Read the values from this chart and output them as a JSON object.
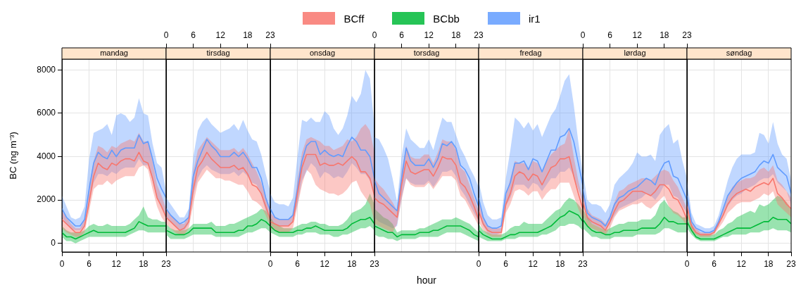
{
  "chart_data": [
    {
      "type": "line",
      "title": "mandag",
      "ylabel": "BC (ng m⁻³)",
      "legend": "top",
      "grid": true,
      "xlim": [
        0,
        23
      ],
      "xticks": [
        0,
        6,
        12,
        18,
        23
      ],
      "ylim": [
        -400,
        8500
      ],
      "yticks": [
        0,
        2000,
        4000,
        6000,
        8000
      ],
      "x": [
        0,
        1,
        2,
        3,
        4,
        5,
        6,
        7,
        8,
        9,
        10,
        11,
        12,
        13,
        14,
        15,
        16,
        17,
        18,
        19,
        20,
        21,
        22,
        23
      ],
      "series": [
        {
          "name": "BCff",
          "color": "#f8766d",
          "values": [
            1100,
            900,
            700,
            500,
            500,
            800,
            1900,
            3100,
            3700,
            3500,
            3400,
            3700,
            3600,
            3800,
            3900,
            3900,
            3800,
            4200,
            3800,
            3700,
            3000,
            2100,
            1700,
            1200
          ],
          "upper": [
            1500,
            1200,
            900,
            700,
            700,
            1100,
            2600,
            3800,
            4500,
            4400,
            4200,
            4500,
            4400,
            4600,
            4700,
            4800,
            4700,
            5100,
            4700,
            4700,
            3800,
            2700,
            2200,
            1600
          ],
          "lower": [
            700,
            500,
            400,
            300,
            300,
            500,
            1500,
            2500,
            2700,
            2700,
            2900,
            2700,
            2900,
            3000,
            3100,
            3100,
            3100,
            3500,
            3600,
            3400,
            2500,
            1700,
            1200,
            900
          ]
        },
        {
          "name": "BCbb",
          "color": "#00ba38",
          "values": [
            500,
            300,
            300,
            200,
            300,
            400,
            500,
            600,
            500,
            500,
            500,
            500,
            500,
            500,
            500,
            600,
            700,
            1000,
            900,
            800,
            800,
            800,
            800,
            800
          ],
          "upper": [
            800,
            600,
            500,
            500,
            500,
            600,
            800,
            900,
            800,
            800,
            900,
            800,
            800,
            800,
            800,
            900,
            1100,
            1300,
            1700,
            1200,
            1100,
            1100,
            1000,
            1000
          ],
          "lower": [
            300,
            100,
            100,
            0,
            100,
            200,
            300,
            300,
            300,
            300,
            300,
            300,
            300,
            300,
            300,
            400,
            500,
            600,
            600,
            500,
            500,
            500,
            500,
            500
          ]
        },
        {
          "name": "ir1",
          "color": "#619cff",
          "values": [
            1600,
            1200,
            1000,
            800,
            800,
            1100,
            2500,
            3700,
            4200,
            4000,
            3900,
            4300,
            4000,
            4300,
            4400,
            4400,
            4400,
            5000,
            4600,
            4700,
            3900,
            3000,
            2500,
            2100
          ],
          "upper": [
            2200,
            1700,
            1200,
            1100,
            1200,
            1700,
            3900,
            5100,
            5200,
            5300,
            5500,
            5000,
            5900,
            6000,
            5900,
            5600,
            5800,
            6700,
            6000,
            5900,
            4600,
            3700,
            3500,
            2400
          ],
          "lower": [
            1200,
            900,
            700,
            600,
            600,
            800,
            1800,
            2800,
            3200,
            3200,
            3100,
            3300,
            3200,
            3400,
            3500,
            3500,
            3500,
            3900,
            3600,
            3600,
            2900,
            2100,
            1600,
            1300
          ]
        }
      ]
    },
    {
      "type": "line",
      "title": "tirsdag",
      "grid": true,
      "tick_labels": "x",
      "xlim": [
        0,
        23
      ],
      "xticks": [
        0,
        6,
        12,
        18,
        23
      ],
      "ylim": [
        -400,
        8500
      ],
      "yticks": [
        0,
        2000,
        4000,
        6000,
        8000
      ],
      "x": [
        0,
        1,
        2,
        3,
        4,
        5,
        6,
        7,
        8,
        9,
        10,
        11,
        12,
        13,
        14,
        15,
        16,
        17,
        18,
        19,
        20,
        21,
        22,
        23
      ],
      "series": [
        {
          "color": "#f8766d",
          "values": [
            1200,
            1000,
            800,
            600,
            700,
            1000,
            2500,
            3500,
            3800,
            4200,
            3900,
            3700,
            3500,
            3500,
            3500,
            3600,
            3400,
            3500,
            3200,
            2700,
            2600,
            2300,
            1700,
            1100
          ],
          "upper": [
            1600,
            1300,
            1100,
            900,
            900,
            1300,
            3300,
            4300,
            4600,
            4900,
            4700,
            4500,
            4300,
            4300,
            4300,
            4400,
            4200,
            4400,
            4100,
            3700,
            3300,
            2800,
            2100,
            1500
          ],
          "lower": [
            900,
            700,
            500,
            400,
            400,
            700,
            1800,
            2800,
            3100,
            3400,
            3200,
            3000,
            3000,
            2900,
            2900,
            2800,
            2700,
            2700,
            2400,
            2000,
            1900,
            1700,
            1300,
            800
          ]
        },
        {
          "color": "#00ba38",
          "values": [
            600,
            500,
            400,
            400,
            400,
            500,
            700,
            700,
            700,
            700,
            700,
            500,
            500,
            500,
            500,
            500,
            600,
            600,
            800,
            800,
            900,
            1100,
            1000,
            800
          ],
          "upper": [
            900,
            700,
            600,
            600,
            600,
            700,
            900,
            900,
            900,
            900,
            1000,
            800,
            800,
            800,
            900,
            900,
            1000,
            1100,
            1200,
            1300,
            1400,
            1600,
            1500,
            1200
          ],
          "lower": [
            400,
            200,
            200,
            200,
            200,
            300,
            400,
            400,
            400,
            400,
            400,
            300,
            300,
            300,
            300,
            300,
            300,
            400,
            500,
            500,
            600,
            700,
            700,
            500
          ]
        },
        {
          "color": "#619cff",
          "values": [
            1600,
            1300,
            1100,
            900,
            1000,
            1200,
            3100,
            3800,
            4300,
            4800,
            4500,
            4300,
            4000,
            4000,
            4000,
            4200,
            4000,
            4200,
            3900,
            3500,
            3500,
            3000,
            2100,
            1500
          ],
          "upper": [
            2100,
            1800,
            1500,
            1200,
            1200,
            1600,
            4000,
            5200,
            5600,
            5800,
            5500,
            5300,
            5100,
            5200,
            5300,
            5500,
            5200,
            5700,
            5200,
            4800,
            4700,
            4100,
            3200,
            2400
          ],
          "lower": [
            1200,
            1000,
            800,
            600,
            600,
            900,
            2200,
            3000,
            3400,
            3600,
            3400,
            3300,
            3200,
            3200,
            3200,
            3300,
            3100,
            3300,
            3100,
            2800,
            2700,
            2200,
            1500,
            1100
          ]
        }
      ]
    },
    {
      "type": "line",
      "title": "onsdag",
      "grid": true,
      "tick_labels": "x",
      "xlim": [
        0,
        23
      ],
      "xticks": [
        0,
        6,
        12,
        18,
        23
      ],
      "ylim": [
        -400,
        8500
      ],
      "yticks": [
        0,
        2000,
        4000,
        6000,
        8000
      ],
      "x": [
        0,
        1,
        2,
        3,
        4,
        5,
        6,
        7,
        8,
        9,
        10,
        11,
        12,
        13,
        14,
        15,
        16,
        17,
        18,
        19,
        20,
        21,
        22,
        23
      ],
      "series": [
        {
          "color": "#f8766d",
          "values": [
            1000,
            900,
            800,
            800,
            800,
            1000,
            2300,
            3500,
            4100,
            4100,
            4100,
            3600,
            3700,
            3600,
            3600,
            3700,
            3600,
            3800,
            4000,
            3800,
            3300,
            3300,
            3000,
            2200
          ],
          "upper": [
            1400,
            1200,
            1100,
            1100,
            1100,
            1300,
            2900,
            4200,
            4800,
            4900,
            4800,
            4700,
            4500,
            4500,
            4300,
            4400,
            4500,
            4800,
            4700,
            4900,
            5300,
            5500,
            5200,
            4200
          ],
          "lower": [
            700,
            600,
            500,
            500,
            500,
            700,
            1700,
            2700,
            3400,
            3200,
            2700,
            2500,
            2400,
            2300,
            2300,
            2200,
            2300,
            2500,
            2800,
            2900,
            2400,
            2100,
            1800,
            1000
          ]
        },
        {
          "color": "#00ba38",
          "values": [
            800,
            600,
            500,
            500,
            500,
            500,
            600,
            600,
            700,
            700,
            800,
            700,
            600,
            600,
            600,
            600,
            600,
            700,
            900,
            1000,
            1100,
            1100,
            1200,
            900
          ],
          "upper": [
            1200,
            900,
            800,
            700,
            700,
            700,
            800,
            900,
            900,
            1000,
            1000,
            900,
            900,
            800,
            800,
            800,
            900,
            1100,
            1400,
            1500,
            1600,
            1800,
            2300,
            1800
          ],
          "lower": [
            500,
            400,
            300,
            300,
            300,
            300,
            400,
            400,
            500,
            500,
            500,
            400,
            400,
            400,
            300,
            300,
            400,
            400,
            500,
            600,
            700,
            700,
            800,
            600
          ]
        },
        {
          "color": "#619cff",
          "values": [
            1600,
            1200,
            1100,
            1100,
            1100,
            1300,
            2500,
            3800,
            4500,
            4700,
            4700,
            4100,
            4300,
            4100,
            4000,
            4100,
            4000,
            4500,
            4900,
            4700,
            4300,
            4300,
            4000,
            3000
          ],
          "upper": [
            2300,
            1900,
            1800,
            1800,
            1700,
            2100,
            4000,
            5700,
            5600,
            5800,
            5600,
            5600,
            6100,
            5900,
            5300,
            5000,
            5300,
            5900,
            6800,
            6500,
            6900,
            8000,
            7600,
            5400
          ],
          "lower": [
            1100,
            900,
            800,
            800,
            800,
            1000,
            1800,
            2900,
            3300,
            3700,
            3500,
            3000,
            3300,
            3200,
            3000,
            3100,
            3000,
            3300,
            3700,
            3500,
            3200,
            3200,
            2900,
            2200
          ]
        }
      ]
    },
    {
      "type": "line",
      "title": "torsdag",
      "xlabel": "hour",
      "grid": true,
      "tick_labels": "x",
      "xlim": [
        0,
        23
      ],
      "xticks": [
        0,
        6,
        12,
        18,
        23
      ],
      "ylim": [
        -400,
        8500
      ],
      "yticks": [
        0,
        2000,
        4000,
        6000,
        8000
      ],
      "x": [
        0,
        1,
        2,
        3,
        4,
        5,
        6,
        7,
        8,
        9,
        10,
        11,
        12,
        13,
        14,
        15,
        16,
        17,
        18,
        19,
        20,
        21,
        22,
        23
      ],
      "series": [
        {
          "color": "#f8766d",
          "values": [
            2100,
            1900,
            1800,
            1600,
            1400,
            1200,
            2700,
            3800,
            3300,
            3200,
            3300,
            3400,
            3400,
            3100,
            3500,
            4000,
            3900,
            3900,
            3600,
            2800,
            2600,
            2200,
            1700,
            1100
          ],
          "upper": [
            3000,
            2700,
            2500,
            2200,
            1900,
            1500,
            3300,
            4500,
            4000,
            3900,
            3900,
            4100,
            4100,
            3700,
            4200,
            4800,
            4700,
            4700,
            4300,
            3500,
            3300,
            2700,
            2100,
            1500
          ],
          "lower": [
            900,
            800,
            700,
            600,
            500,
            900,
            2000,
            3000,
            2700,
            2600,
            2600,
            2600,
            2800,
            2500,
            2800,
            3100,
            3100,
            3100,
            2900,
            2200,
            2000,
            1600,
            1200,
            800
          ]
        },
        {
          "color": "#00ba38",
          "values": [
            800,
            700,
            600,
            500,
            500,
            300,
            400,
            400,
            400,
            400,
            500,
            500,
            500,
            600,
            600,
            700,
            800,
            800,
            800,
            800,
            700,
            600,
            400,
            300
          ],
          "upper": [
            1600,
            1400,
            1200,
            1100,
            900,
            500,
            600,
            600,
            600,
            600,
            700,
            700,
            800,
            900,
            1000,
            1100,
            1100,
            1100,
            1200,
            1100,
            1000,
            900,
            700,
            500
          ],
          "lower": [
            400,
            300,
            300,
            200,
            200,
            100,
            200,
            200,
            200,
            200,
            300,
            300,
            300,
            300,
            300,
            400,
            500,
            500,
            500,
            500,
            400,
            300,
            200,
            100
          ]
        },
        {
          "color": "#619cff",
          "values": [
            2900,
            2300,
            2100,
            1900,
            1700,
            1500,
            3000,
            4400,
            3800,
            3600,
            3600,
            3600,
            3900,
            3500,
            3900,
            4600,
            4500,
            4700,
            4400,
            3600,
            3400,
            3000,
            2300,
            1700
          ],
          "upper": [
            4900,
            4800,
            4400,
            3900,
            3000,
            1900,
            4000,
            5300,
            4800,
            4600,
            4400,
            4400,
            4800,
            4300,
            5100,
            5800,
            5600,
            5600,
            5000,
            4400,
            4000,
            3500,
            3100,
            2600
          ],
          "lower": [
            1200,
            1000,
            900,
            800,
            700,
            800,
            2100,
            3000,
            2800,
            2700,
            2700,
            2700,
            2900,
            2600,
            2900,
            3300,
            3300,
            3400,
            3100,
            2500,
            2200,
            1800,
            1400,
            1000
          ]
        }
      ]
    },
    {
      "type": "line",
      "title": "fredag",
      "grid": true,
      "tick_labels": "x",
      "xlim": [
        0,
        23
      ],
      "xticks": [
        0,
        6,
        12,
        18,
        23
      ],
      "ylim": [
        -400,
        8500
      ],
      "yticks": [
        0,
        2000,
        4000,
        6000,
        8000
      ],
      "x": [
        0,
        1,
        2,
        3,
        4,
        5,
        6,
        7,
        8,
        9,
        10,
        11,
        12,
        13,
        14,
        15,
        16,
        17,
        18,
        19,
        20,
        21,
        22,
        23
      ],
      "series": [
        {
          "color": "#f8766d",
          "values": [
            1500,
            900,
            600,
            500,
            500,
            500,
            1800,
            2300,
            3100,
            3300,
            3200,
            2900,
            3200,
            3100,
            2700,
            3100,
            3500,
            3600,
            3900,
            3900,
            4000,
            3100,
            2300,
            1600
          ],
          "upper": [
            2000,
            1200,
            800,
            700,
            700,
            700,
            2200,
            3000,
            3800,
            3700,
            3700,
            3500,
            3800,
            3700,
            3300,
            3800,
            4100,
            4300,
            4500,
            4600,
            5300,
            4000,
            2900,
            2000
          ],
          "lower": [
            1000,
            600,
            400,
            300,
            300,
            300,
            1400,
            1800,
            2400,
            2500,
            2400,
            2200,
            2400,
            2400,
            2000,
            2300,
            2500,
            2500,
            2800,
            2800,
            2800,
            2200,
            1600,
            1100
          ]
        },
        {
          "color": "#00ba38",
          "values": [
            600,
            400,
            300,
            200,
            200,
            200,
            300,
            400,
            400,
            500,
            500,
            500,
            500,
            500,
            600,
            700,
            800,
            1000,
            1200,
            1300,
            1500,
            1400,
            1300,
            1000
          ],
          "upper": [
            900,
            600,
            500,
            400,
            400,
            400,
            500,
            700,
            800,
            800,
            1000,
            900,
            900,
            900,
            900,
            1100,
            1300,
            1500,
            1600,
            1900,
            2100,
            2000,
            1800,
            1500
          ],
          "lower": [
            300,
            200,
            100,
            100,
            100,
            100,
            200,
            200,
            200,
            300,
            300,
            300,
            300,
            300,
            400,
            400,
            500,
            600,
            800,
            800,
            900,
            900,
            800,
            600
          ]
        },
        {
          "color": "#619cff",
          "values": [
            2100,
            1200,
            800,
            700,
            700,
            800,
            2300,
            2800,
            3700,
            3700,
            3800,
            3400,
            3900,
            3800,
            3300,
            3800,
            4300,
            4300,
            4900,
            5000,
            5300,
            4700,
            3700,
            2700
          ],
          "upper": [
            2900,
            1900,
            1300,
            1100,
            1100,
            1200,
            3000,
            4300,
            5800,
            5600,
            5300,
            5600,
            5200,
            5500,
            4900,
            5400,
            5900,
            6200,
            6800,
            7500,
            7800,
            6400,
            4700,
            3200
          ],
          "lower": [
            1400,
            800,
            500,
            400,
            400,
            500,
            1700,
            2100,
            2700,
            2700,
            2700,
            2500,
            2800,
            2700,
            2400,
            2700,
            3000,
            3000,
            3300,
            3300,
            3500,
            3100,
            2500,
            1900
          ]
        }
      ]
    },
    {
      "type": "line",
      "title": "lørdag",
      "grid": true,
      "tick_labels": "x",
      "xlim": [
        0,
        23
      ],
      "xticks": [
        0,
        6,
        12,
        18,
        23
      ],
      "ylim": [
        -400,
        8500
      ],
      "yticks": [
        0,
        2000,
        4000,
        6000,
        8000
      ],
      "x": [
        0,
        1,
        2,
        3,
        4,
        5,
        6,
        7,
        8,
        9,
        10,
        11,
        12,
        13,
        14,
        15,
        16,
        17,
        18,
        19,
        20,
        21,
        22,
        23
      ],
      "series": [
        {
          "color": "#f8766d",
          "values": [
            1900,
            1200,
            1000,
            900,
            800,
            600,
            1000,
            1500,
            1900,
            2000,
            2200,
            2400,
            2400,
            2400,
            2300,
            2200,
            2400,
            2700,
            2700,
            2500,
            2100,
            2000,
            1600,
            1100
          ],
          "upper": [
            2500,
            1600,
            1300,
            1200,
            1100,
            900,
            1300,
            1900,
            2400,
            2500,
            2700,
            2800,
            2900,
            3000,
            3000,
            2900,
            3100,
            3300,
            3400,
            3300,
            2900,
            2600,
            2100,
            1600
          ],
          "lower": [
            1300,
            800,
            700,
            600,
            500,
            400,
            700,
            1200,
            1500,
            1600,
            1700,
            1800,
            1800,
            1900,
            1700,
            1600,
            1800,
            2000,
            2200,
            1700,
            1400,
            1300,
            1100,
            800
          ]
        },
        {
          "color": "#00ba38",
          "values": [
            1100,
            800,
            600,
            500,
            500,
            400,
            400,
            500,
            500,
            600,
            600,
            600,
            600,
            700,
            700,
            700,
            700,
            900,
            1200,
            1000,
            1000,
            900,
            900,
            900
          ],
          "upper": [
            1600,
            1200,
            900,
            800,
            700,
            600,
            700,
            800,
            900,
            900,
            1000,
            1000,
            1000,
            1100,
            1100,
            1100,
            1300,
            1800,
            2000,
            1700,
            1500,
            1400,
            1200,
            1200
          ],
          "lower": [
            700,
            500,
            300,
            300,
            200,
            200,
            200,
            300,
            300,
            300,
            300,
            300,
            400,
            400,
            400,
            400,
            400,
            500,
            700,
            700,
            600,
            500,
            500,
            500
          ]
        },
        {
          "color": "#619cff",
          "values": [
            2500,
            1400,
            1200,
            1100,
            1000,
            800,
            1200,
            1800,
            2100,
            2200,
            2400,
            2500,
            2600,
            2800,
            3000,
            2900,
            2700,
            3300,
            3700,
            3800,
            3100,
            3000,
            2500,
            2000
          ],
          "upper": [
            3300,
            2000,
            1800,
            1800,
            1700,
            1400,
            1800,
            2700,
            3000,
            3200,
            3400,
            3700,
            4200,
            4000,
            4000,
            4100,
            3800,
            5000,
            5300,
            5500,
            4600,
            4800,
            3800,
            3000
          ],
          "lower": [
            1900,
            1100,
            900,
            800,
            700,
            600,
            900,
            1300,
            1600,
            1700,
            1800,
            1900,
            2000,
            2100,
            2300,
            2200,
            2000,
            2300,
            2700,
            2700,
            2200,
            2100,
            1700,
            1400
          ]
        }
      ]
    },
    {
      "type": "line",
      "title": "søndag",
      "grid": true,
      "tick_labels": "x",
      "xlim": [
        0,
        23
      ],
      "xticks": [
        0,
        6,
        12,
        18,
        23
      ],
      "ylim": [
        -400,
        8500
      ],
      "yticks": [
        0,
        2000,
        4000,
        6000,
        8000
      ],
      "x": [
        0,
        1,
        2,
        3,
        4,
        5,
        6,
        7,
        8,
        9,
        10,
        11,
        12,
        13,
        14,
        15,
        16,
        17,
        18,
        19,
        20,
        21,
        22,
        23
      ],
      "series": [
        {
          "color": "#f8766d",
          "values": [
            1700,
            800,
            500,
            400,
            400,
            400,
            500,
            900,
            1300,
            1800,
            2100,
            2300,
            2400,
            2500,
            2400,
            2600,
            2700,
            2800,
            2700,
            3000,
            2300,
            2100,
            1800,
            1600
          ],
          "upper": [
            2100,
            1000,
            700,
            500,
            500,
            500,
            600,
            1100,
            1600,
            2200,
            2600,
            2800,
            2900,
            3000,
            3000,
            3100,
            3400,
            3500,
            3300,
            3600,
            2900,
            2700,
            2400,
            2100
          ],
          "lower": [
            1300,
            600,
            400,
            300,
            300,
            300,
            400,
            700,
            1000,
            1400,
            1600,
            1800,
            1900,
            1900,
            1900,
            2000,
            2100,
            2300,
            2200,
            2400,
            1800,
            1600,
            1400,
            1200
          ]
        },
        {
          "color": "#00ba38",
          "values": [
            1000,
            600,
            300,
            200,
            200,
            200,
            200,
            300,
            400,
            500,
            600,
            700,
            700,
            700,
            700,
            800,
            900,
            1000,
            1000,
            1200,
            1100,
            1100,
            1100,
            900
          ],
          "upper": [
            1400,
            900,
            500,
            400,
            400,
            400,
            400,
            600,
            700,
            900,
            1000,
            1200,
            1300,
            1400,
            1500,
            1400,
            1800,
            1700,
            1800,
            2000,
            2200,
            2100,
            1900,
            1600
          ],
          "lower": [
            700,
            400,
            200,
            100,
            100,
            100,
            100,
            200,
            300,
            300,
            400,
            400,
            400,
            400,
            500,
            500,
            500,
            600,
            600,
            700,
            600,
            600,
            600,
            500
          ]
        },
        {
          "color": "#619cff",
          "values": [
            2200,
            1000,
            700,
            600,
            500,
            500,
            600,
            1000,
            1600,
            2200,
            2500,
            2800,
            3000,
            3100,
            3200,
            3300,
            3600,
            3800,
            3700,
            4100,
            3500,
            3300,
            3100,
            2300
          ],
          "upper": [
            2900,
            1400,
            900,
            800,
            700,
            700,
            800,
            1300,
            2100,
            2900,
            3500,
            3900,
            4100,
            4100,
            4100,
            4200,
            5100,
            5000,
            4600,
            5600,
            4600,
            4100,
            3900,
            2900
          ],
          "lower": [
            1700,
            700,
            500,
            400,
            400,
            400,
            500,
            800,
            1300,
            1700,
            2000,
            2200,
            2300,
            2500,
            2600,
            2700,
            2900,
            3000,
            3000,
            3200,
            2800,
            2600,
            2400,
            1800
          ]
        }
      ]
    }
  ]
}
